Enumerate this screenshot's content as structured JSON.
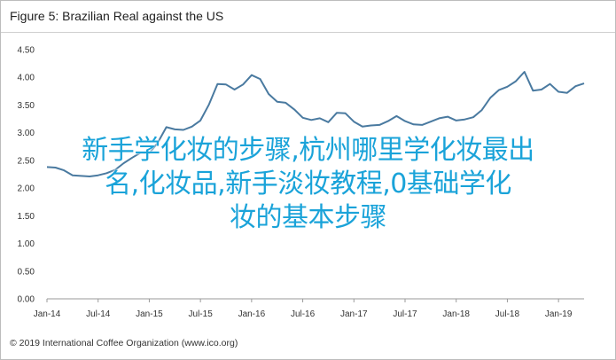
{
  "figure_title": "Figure 5: Brazilian Real against the US",
  "footer": "© 2019 International Coffee Organization (www.ico.org)",
  "overlay_text": {
    "line1": "新手学化妆的步骤,杭州哪里学化妆最出",
    "line2": "名,化妆品,新手淡妆教程,0基础学化",
    "line3": "妆的基本步骤"
  },
  "colors": {
    "line": "#4a7aa0",
    "overlay": "#1aa3d9"
  },
  "chart_data": {
    "type": "line",
    "title": "Figure 5: Brazilian Real against the US",
    "xlabel": "",
    "ylabel": "",
    "ylim": [
      0,
      4.5
    ],
    "y_ticks": [
      "4.50",
      "4.00",
      "3.50",
      "3.00",
      "2.50",
      "2.00",
      "1.50",
      "1.00",
      "0.50",
      "0.00"
    ],
    "x_ticks": [
      "Jan-14",
      "Jul-14",
      "Jan-15",
      "Jul-15",
      "Jan-16",
      "Jul-16",
      "Jan-17",
      "Jul-17",
      "Jan-18",
      "Jul-18",
      "Jan-19"
    ],
    "grid": false,
    "series": [
      {
        "x": [
          "2014-01",
          "2014-02",
          "2014-03",
          "2014-04",
          "2014-05",
          "2014-06",
          "2014-07",
          "2014-08",
          "2014-09",
          "2014-10",
          "2014-11",
          "2014-12",
          "2015-01",
          "2015-02",
          "2015-03",
          "2015-04",
          "2015-05",
          "2015-06",
          "2015-07",
          "2015-08",
          "2015-09",
          "2015-10",
          "2015-11",
          "2015-12",
          "2016-01",
          "2016-02",
          "2016-03",
          "2016-04",
          "2016-05",
          "2016-06",
          "2016-07",
          "2016-08",
          "2016-09",
          "2016-10",
          "2016-11",
          "2016-12",
          "2017-01",
          "2017-02",
          "2017-03",
          "2017-04",
          "2017-05",
          "2017-06",
          "2017-07",
          "2017-08",
          "2017-09",
          "2017-10",
          "2017-11",
          "2017-12",
          "2018-01",
          "2018-02",
          "2018-03",
          "2018-04",
          "2018-05",
          "2018-06",
          "2018-07",
          "2018-08",
          "2018-09",
          "2018-10",
          "2018-11",
          "2018-12",
          "2019-01",
          "2019-02",
          "2019-03",
          "2019-04"
        ],
        "values": [
          2.38,
          2.37,
          2.32,
          2.23,
          2.22,
          2.21,
          2.23,
          2.27,
          2.33,
          2.45,
          2.55,
          2.64,
          2.63,
          2.82,
          3.1,
          3.06,
          3.05,
          3.11,
          3.22,
          3.51,
          3.88,
          3.87,
          3.78,
          3.87,
          4.04,
          3.97,
          3.7,
          3.56,
          3.54,
          3.42,
          3.27,
          3.23,
          3.26,
          3.19,
          3.36,
          3.35,
          3.2,
          3.11,
          3.13,
          3.14,
          3.21,
          3.3,
          3.21,
          3.15,
          3.14,
          3.2,
          3.26,
          3.29,
          3.22,
          3.24,
          3.28,
          3.41,
          3.63,
          3.77,
          3.83,
          3.93,
          4.1,
          3.76,
          3.78,
          3.88,
          3.74,
          3.72,
          3.84,
          3.89
        ]
      }
    ]
  }
}
